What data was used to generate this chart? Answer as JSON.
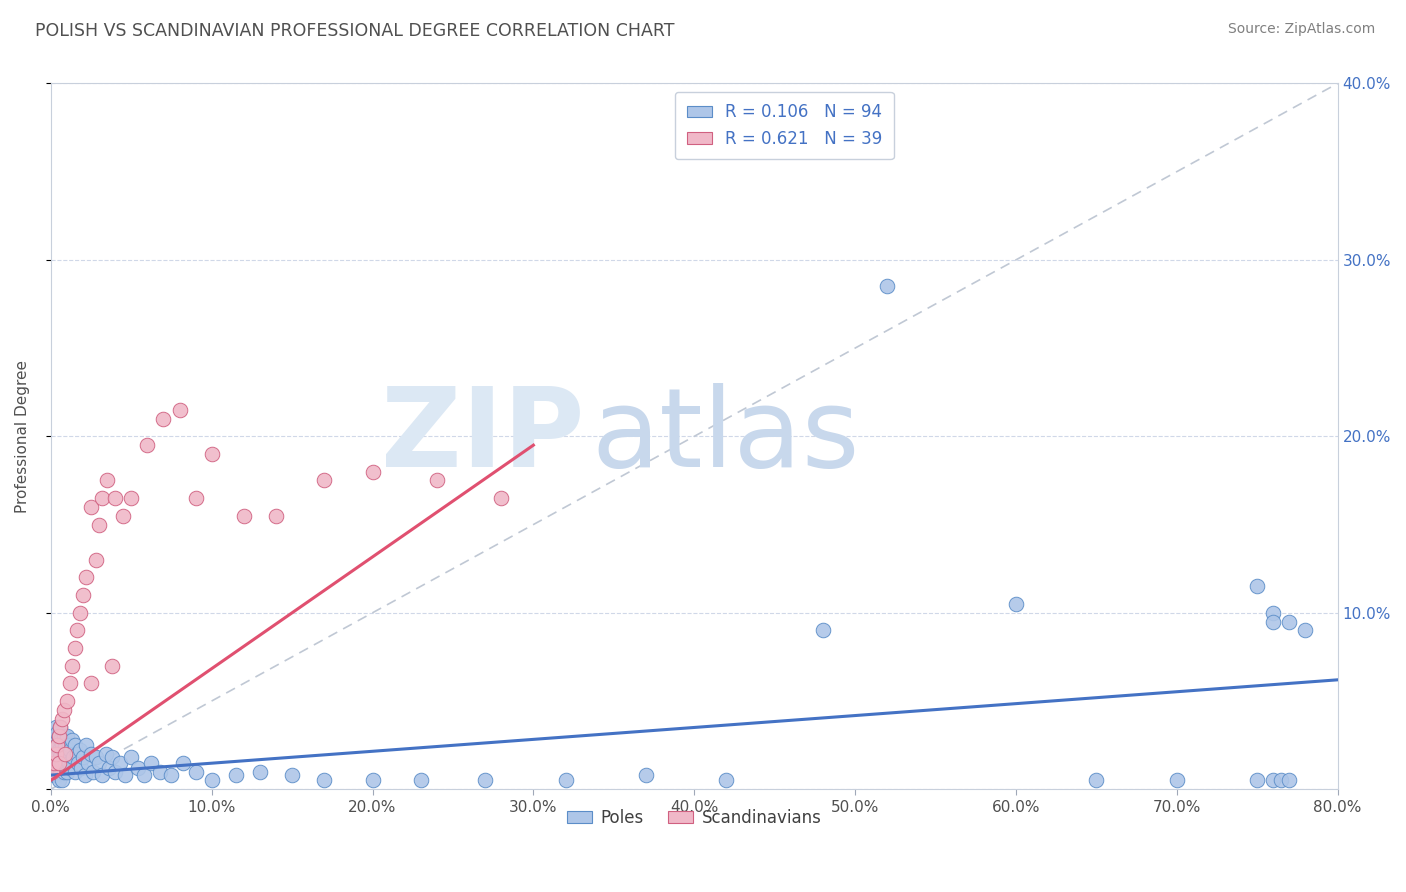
{
  "title": "POLISH VS SCANDINAVIAN PROFESSIONAL DEGREE CORRELATION CHART",
  "source": "Source: ZipAtlas.com",
  "ylabel": "Professional Degree",
  "xlim": [
    0.0,
    0.8
  ],
  "ylim": [
    0.0,
    0.4
  ],
  "poles_color": "#aec6e8",
  "scandinavians_color": "#f0b8c8",
  "poles_edge_color": "#5b8dc8",
  "scandinavians_edge_color": "#d06080",
  "poles_line_color": "#4472c4",
  "scandinavians_line_color": "#e05070",
  "legend_text_color": "#4472c4",
  "title_color": "#505050",
  "grid_color": "#d0d8e8",
  "background_color": "#ffffff",
  "watermark_color": "#dce8f4",
  "R_poles": 0.106,
  "N_poles": 94,
  "R_scand": 0.621,
  "N_scand": 39,
  "poles_x": [
    0.001,
    0.001,
    0.001,
    0.002,
    0.002,
    0.002,
    0.002,
    0.003,
    0.003,
    0.003,
    0.003,
    0.004,
    0.004,
    0.004,
    0.004,
    0.005,
    0.005,
    0.005,
    0.005,
    0.006,
    0.006,
    0.006,
    0.006,
    0.007,
    0.007,
    0.007,
    0.008,
    0.008,
    0.008,
    0.009,
    0.009,
    0.01,
    0.01,
    0.01,
    0.011,
    0.011,
    0.012,
    0.012,
    0.013,
    0.014,
    0.015,
    0.015,
    0.016,
    0.017,
    0.018,
    0.019,
    0.02,
    0.021,
    0.022,
    0.023,
    0.025,
    0.026,
    0.028,
    0.03,
    0.032,
    0.034,
    0.036,
    0.038,
    0.04,
    0.043,
    0.046,
    0.05,
    0.054,
    0.058,
    0.062,
    0.068,
    0.075,
    0.082,
    0.09,
    0.1,
    0.115,
    0.13,
    0.15,
    0.17,
    0.2,
    0.23,
    0.27,
    0.32,
    0.37,
    0.42,
    0.48,
    0.52,
    0.6,
    0.65,
    0.7,
    0.75,
    0.76,
    0.77,
    0.76,
    0.78,
    0.75,
    0.76,
    0.765,
    0.77
  ],
  "poles_y": [
    0.018,
    0.025,
    0.012,
    0.03,
    0.022,
    0.015,
    0.008,
    0.028,
    0.018,
    0.01,
    0.035,
    0.025,
    0.015,
    0.008,
    0.032,
    0.022,
    0.012,
    0.03,
    0.005,
    0.028,
    0.018,
    0.01,
    0.035,
    0.025,
    0.015,
    0.005,
    0.03,
    0.02,
    0.01,
    0.025,
    0.015,
    0.03,
    0.02,
    0.01,
    0.025,
    0.015,
    0.022,
    0.012,
    0.028,
    0.018,
    0.025,
    0.01,
    0.02,
    0.015,
    0.022,
    0.012,
    0.018,
    0.008,
    0.025,
    0.015,
    0.02,
    0.01,
    0.018,
    0.015,
    0.008,
    0.02,
    0.012,
    0.018,
    0.01,
    0.015,
    0.008,
    0.018,
    0.012,
    0.008,
    0.015,
    0.01,
    0.008,
    0.015,
    0.01,
    0.005,
    0.008,
    0.01,
    0.008,
    0.005,
    0.005,
    0.005,
    0.005,
    0.005,
    0.008,
    0.005,
    0.09,
    0.285,
    0.105,
    0.005,
    0.005,
    0.115,
    0.1,
    0.095,
    0.095,
    0.09,
    0.005,
    0.005,
    0.005,
    0.005
  ],
  "scand_x": [
    0.001,
    0.002,
    0.003,
    0.004,
    0.005,
    0.005,
    0.006,
    0.007,
    0.008,
    0.009,
    0.01,
    0.012,
    0.013,
    0.015,
    0.016,
    0.018,
    0.02,
    0.022,
    0.025,
    0.025,
    0.028,
    0.03,
    0.032,
    0.035,
    0.038,
    0.04,
    0.045,
    0.05,
    0.06,
    0.07,
    0.08,
    0.09,
    0.1,
    0.12,
    0.14,
    0.17,
    0.2,
    0.24,
    0.28
  ],
  "scand_y": [
    0.01,
    0.015,
    0.02,
    0.025,
    0.03,
    0.015,
    0.035,
    0.04,
    0.045,
    0.02,
    0.05,
    0.06,
    0.07,
    0.08,
    0.09,
    0.1,
    0.11,
    0.12,
    0.16,
    0.06,
    0.13,
    0.15,
    0.165,
    0.175,
    0.07,
    0.165,
    0.155,
    0.165,
    0.195,
    0.21,
    0.215,
    0.165,
    0.19,
    0.155,
    0.155,
    0.175,
    0.18,
    0.175,
    0.165
  ],
  "ref_line_x": [
    0.0,
    0.8
  ],
  "ref_line_y": [
    0.0,
    0.4
  ]
}
